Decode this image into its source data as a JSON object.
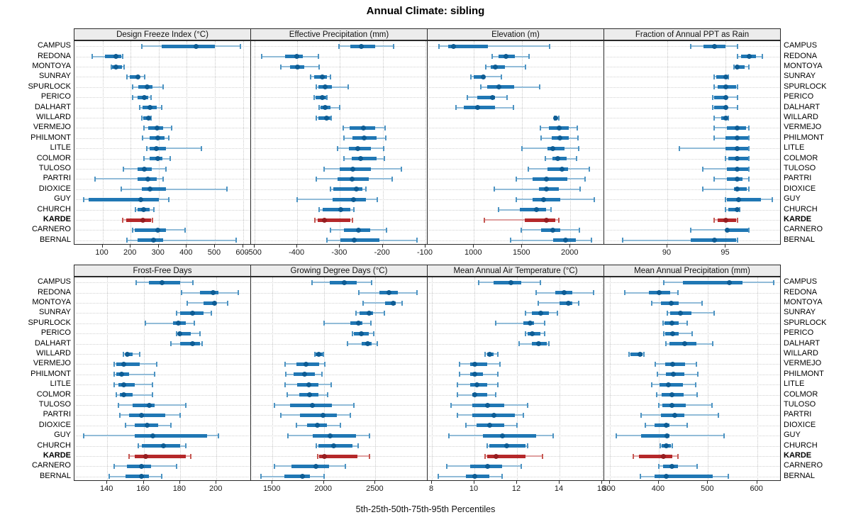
{
  "title": "Annual Climate: sibling",
  "caption": "5th-25th-50th-75th-95th Percentiles",
  "highlight_location": "KARDE",
  "locations": [
    "CAMPUS",
    "REDONA",
    "MONTOYA",
    "SUNRAY",
    "SPURLOCK",
    "PERICO",
    "DALHART",
    "WILLARD",
    "VERMEJO",
    "PHILMONT",
    "LITLE",
    "COLMOR",
    "TULOSO",
    "PARTRI",
    "DIOXICE",
    "GUY",
    "CHURCH",
    "KARDE",
    "CARNERO",
    "BERNAL"
  ],
  "colors": {
    "blue_whisker": "#92bcd8",
    "blue_cap": "#4d94c3",
    "blue_box": "#2077b4",
    "blue_dot": "#0d5c94",
    "red_whisker": "#dfa0a0",
    "red_cap": "#c65853",
    "red_box": "#b5282a",
    "red_dot": "#951d20",
    "grid": "#cccccc",
    "strip_bg": "#ececec",
    "border": "#2a2a2a"
  },
  "chart_data": [
    {
      "type": "dotplot-percentiles",
      "title": "Design Freeze Index (°C)",
      "percentile_labels": [
        "5th",
        "25th",
        "50th",
        "75th",
        "95th"
      ],
      "xlim": [
        0,
        629
      ],
      "ticks": [
        100,
        200,
        300,
        400,
        500,
        600
      ],
      "values": [
        [
          240,
          310,
          433,
          500,
          590
        ],
        [
          62,
          108,
          148,
          166,
          172
        ],
        [
          132,
          135,
          148,
          169,
          176
        ],
        [
          187,
          197,
          225,
          231,
          249
        ],
        [
          207,
          227,
          259,
          277,
          317
        ],
        [
          207,
          225,
          250,
          262,
          274
        ],
        [
          233,
          242,
          270,
          292,
          310
        ],
        [
          240,
          246,
          264,
          271,
          274
        ],
        [
          248,
          263,
          294,
          315,
          346
        ],
        [
          242,
          269,
          298,
          320,
          337
        ],
        [
          258,
          269,
          291,
          325,
          453
        ],
        [
          247,
          269,
          298,
          312,
          342
        ],
        [
          174,
          225,
          250,
          275,
          327
        ],
        [
          74,
          226,
          262,
          294,
          317
        ],
        [
          167,
          239,
          270,
          327,
          544
        ],
        [
          33,
          50,
          237,
          300,
          337
        ],
        [
          216,
          225,
          247,
          267,
          284
        ],
        [
          172,
          185,
          243,
          272,
          279
        ],
        [
          206,
          214,
          298,
          327,
          393
        ],
        [
          187,
          225,
          281,
          315,
          576
        ]
      ]
    },
    {
      "type": "dotplot-percentiles",
      "title": "Effective Precipitation (mm)",
      "percentile_labels": [
        "5th",
        "25th",
        "50th",
        "75th",
        "95th"
      ],
      "xlim": [
        -508,
        -95
      ],
      "ticks": [
        -500,
        -400,
        -300,
        -200,
        -100
      ],
      "values": [
        [
          -303,
          -276,
          -250,
          -218,
          -174
        ],
        [
          -483,
          -428,
          -401,
          -387,
          -350
        ],
        [
          -439,
          -417,
          -399,
          -383,
          -349
        ],
        [
          -369,
          -361,
          -342,
          -331,
          -323
        ],
        [
          -355,
          -350,
          -334,
          -319,
          -281
        ],
        [
          -361,
          -357,
          -341,
          -332,
          -330
        ],
        [
          -349,
          -346,
          -334,
          -323,
          -301
        ],
        [
          -355,
          -350,
          -331,
          -323,
          -320
        ],
        [
          -292,
          -278,
          -245,
          -218,
          -195
        ],
        [
          -290,
          -270,
          -243,
          -215,
          -193
        ],
        [
          -305,
          -279,
          -258,
          -227,
          -198
        ],
        [
          -290,
          -272,
          -252,
          -215,
          -196
        ],
        [
          -337,
          -301,
          -270,
          -227,
          -157
        ],
        [
          -356,
          -305,
          -272,
          -232,
          -178
        ],
        [
          -323,
          -316,
          -261,
          -247,
          -240
        ],
        [
          -401,
          -317,
          -268,
          -240,
          -212
        ],
        [
          -349,
          -340,
          -299,
          -275,
          -268
        ],
        [
          -358,
          -352,
          -336,
          -275,
          -270
        ],
        [
          -322,
          -290,
          -257,
          -229,
          -191
        ],
        [
          -331,
          -299,
          -267,
          -208,
          -120
        ]
      ]
    },
    {
      "type": "dotplot-percentiles",
      "title": "Elevation (m)",
      "percentile_labels": [
        "5th",
        "25th",
        "50th",
        "75th",
        "95th"
      ],
      "xlim": [
        520,
        2351
      ],
      "ticks": [
        1000,
        1500,
        2000
      ],
      "values": [
        [
          640,
          730,
          790,
          1145,
          1785
        ],
        [
          1190,
          1256,
          1335,
          1422,
          1570
        ],
        [
          1122,
          1176,
          1220,
          1325,
          1537
        ],
        [
          970,
          1000,
          1100,
          1115,
          1285
        ],
        [
          1073,
          1139,
          1256,
          1415,
          1679
        ],
        [
          930,
          1035,
          1195,
          1220,
          1340
        ],
        [
          817,
          897,
          1037,
          1215,
          1408
        ],
        [
          1837,
          1843,
          1849,
          1866,
          1878
        ],
        [
          1688,
          1781,
          1886,
          1984,
          2074
        ],
        [
          1700,
          1805,
          1891,
          1984,
          2079
        ],
        [
          1496,
          1760,
          1815,
          1942,
          2084
        ],
        [
          1737,
          1817,
          1871,
          1959,
          2061
        ],
        [
          1566,
          1761,
          1911,
          1976,
          2200
        ],
        [
          1439,
          1610,
          1750,
          1969,
          2152
        ],
        [
          1208,
          1671,
          1752,
          1878,
          2103
        ],
        [
          1439,
          1610,
          1725,
          1896,
          2249
        ],
        [
          1256,
          1476,
          1647,
          1745,
          1798
        ],
        [
          1110,
          1530,
          1752,
          1847,
          1878
        ],
        [
          1488,
          1695,
          1817,
          1896,
          2091
        ],
        [
          1384,
          1825,
          1952,
          2057,
          2220
        ]
      ]
    },
    {
      "type": "dotplot-percentiles",
      "title": "Fraction of Annual PPT as Rain",
      "percentile_labels": [
        "5th",
        "25th",
        "50th",
        "75th",
        "95th"
      ],
      "xlim": [
        84.6,
        99.7
      ],
      "ticks": [
        90,
        95
      ],
      "values": [
        [
          92.0,
          93.1,
          94.0,
          95.0,
          96.0
        ],
        [
          96.0,
          96.3,
          97.0,
          97.6,
          98.1
        ],
        [
          95.7,
          95.8,
          96.0,
          96.6,
          97.0
        ],
        [
          94.0,
          94.2,
          95.0,
          95.1,
          95.2
        ],
        [
          94.0,
          94.3,
          95.0,
          95.9,
          96.0
        ],
        [
          93.9,
          94.0,
          95.0,
          95.1,
          96.0
        ],
        [
          93.9,
          94.0,
          95.0,
          95.1,
          96.0
        ],
        [
          94.0,
          94.6,
          95.0,
          95.1,
          95.2
        ],
        [
          94.0,
          95.1,
          96.0,
          96.7,
          97.0
        ],
        [
          94.0,
          95.0,
          96.0,
          96.9,
          97.0
        ],
        [
          91.0,
          95.0,
          96.0,
          96.9,
          97.0
        ],
        [
          95.0,
          95.2,
          96.0,
          96.9,
          97.0
        ],
        [
          93.0,
          95.1,
          96.0,
          96.9,
          97.0
        ],
        [
          94.0,
          95.1,
          96.0,
          96.4,
          97.0
        ],
        [
          93.0,
          95.7,
          96.0,
          96.8,
          97.0
        ],
        [
          95.0,
          95.1,
          96.1,
          98.0,
          99.0
        ],
        [
          95.0,
          95.2,
          96.0,
          96.1,
          96.2
        ],
        [
          94.0,
          94.3,
          95.0,
          95.9,
          96.0
        ],
        [
          92.0,
          95.0,
          95.1,
          96.9,
          97.0
        ],
        [
          86.2,
          92.0,
          94.0,
          95.9,
          96.0
        ]
      ]
    },
    {
      "type": "dotplot-percentiles",
      "title": "Frost-Free Days",
      "percentile_labels": [
        "5th",
        "25th",
        "50th",
        "75th",
        "95th"
      ],
      "xlim": [
        122,
        219
      ],
      "ticks": [
        140,
        160,
        180,
        200
      ],
      "values": [
        [
          156,
          163,
          170,
          180,
          187
        ],
        [
          181,
          191,
          198,
          201,
          212
        ],
        [
          184,
          193,
          199,
          200,
          206
        ],
        [
          178,
          180,
          187,
          193,
          197
        ],
        [
          161,
          176,
          179,
          183,
          188
        ],
        [
          178,
          179,
          180,
          186,
          191
        ],
        [
          175,
          180,
          187,
          191,
          192
        ],
        [
          149,
          150,
          151,
          154,
          158
        ],
        [
          144,
          145,
          149,
          158,
          167
        ],
        [
          144,
          145,
          148,
          152,
          166
        ],
        [
          144,
          146,
          149,
          155,
          165
        ],
        [
          145,
          147,
          149,
          154,
          165
        ],
        [
          146,
          154,
          163,
          166,
          183
        ],
        [
          147,
          152,
          159,
          172,
          180
        ],
        [
          150,
          155,
          162,
          168,
          175
        ],
        [
          127,
          155,
          165,
          195,
          201
        ],
        [
          157,
          159,
          171,
          180,
          183
        ],
        [
          152,
          155,
          161,
          183,
          186
        ],
        [
          144,
          151,
          159,
          164,
          178
        ],
        [
          141,
          150,
          159,
          163,
          170
        ]
      ]
    },
    {
      "type": "dotplot-percentiles",
      "title": "Growing Degree Days (°C)",
      "percentile_labels": [
        "5th",
        "25th",
        "50th",
        "75th",
        "95th"
      ],
      "xlim": [
        1292,
        3007
      ],
      "ticks": [
        1500,
        2000,
        2500
      ],
      "values": [
        [
          1885,
          2055,
          2195,
          2315,
          2465
        ],
        [
          2337,
          2539,
          2631,
          2716,
          2906
        ],
        [
          2380,
          2594,
          2670,
          2700,
          2757
        ],
        [
          2310,
          2349,
          2436,
          2475,
          2585
        ],
        [
          2000,
          2257,
          2337,
          2372,
          2459
        ],
        [
          2276,
          2291,
          2360,
          2436,
          2482
        ],
        [
          2230,
          2367,
          2425,
          2463,
          2520
        ],
        [
          1909,
          1921,
          1952,
          1986,
          1993
        ],
        [
          1622,
          1730,
          1828,
          1950,
          2009
        ],
        [
          1631,
          1706,
          1814,
          1909,
          1982
        ],
        [
          1620,
          1741,
          1851,
          1947,
          2069
        ],
        [
          1642,
          1758,
          1863,
          1947,
          2039
        ],
        [
          1518,
          1673,
          1886,
          2074,
          2288
        ],
        [
          1580,
          1765,
          1993,
          2128,
          2259
        ],
        [
          1730,
          1833,
          1936,
          2027,
          2162
        ],
        [
          1649,
          1890,
          2062,
          2312,
          2440
        ],
        [
          1924,
          1947,
          2096,
          2278,
          2335
        ],
        [
          1936,
          1954,
          2004,
          2323,
          2440
        ],
        [
          1520,
          1685,
          1925,
          2050,
          2210
        ],
        [
          1386,
          1614,
          1794,
          1867,
          2000
        ]
      ]
    },
    {
      "type": "dotplot-percentiles",
      "title": "Mean Annual Air Temperature (°C)",
      "percentile_labels": [
        "5th",
        "25th",
        "50th",
        "75th",
        "95th"
      ],
      "xlim": [
        7.8,
        16.1
      ],
      "ticks": [
        8,
        10,
        12,
        14,
        16
      ],
      "values": [
        [
          10.2,
          10.9,
          11.7,
          12.2,
          13.1
        ],
        [
          12.9,
          13.8,
          14.2,
          14.6,
          15.6
        ],
        [
          13.0,
          14.0,
          14.4,
          14.6,
          14.9
        ],
        [
          12.4,
          12.7,
          13.1,
          13.5,
          13.9
        ],
        [
          11.0,
          12.3,
          12.6,
          12.8,
          13.3
        ],
        [
          12.4,
          12.5,
          12.7,
          13.1,
          13.3
        ],
        [
          12.1,
          12.7,
          13.0,
          13.4,
          13.5
        ],
        [
          10.5,
          10.6,
          10.7,
          10.9,
          11.1
        ],
        [
          9.3,
          9.8,
          10.0,
          10.6,
          11.2
        ],
        [
          9.3,
          9.8,
          10.0,
          10.4,
          11.1
        ],
        [
          9.2,
          9.8,
          10.1,
          10.6,
          11.1
        ],
        [
          9.2,
          9.9,
          10.0,
          10.6,
          11.0
        ],
        [
          8.9,
          9.9,
          10.6,
          11.4,
          12.5
        ],
        [
          9.2,
          9.9,
          10.9,
          11.9,
          12.3
        ],
        [
          9.6,
          10.1,
          10.7,
          11.4,
          12.0
        ],
        [
          8.8,
          10.4,
          11.3,
          12.9,
          13.7
        ],
        [
          10.6,
          10.7,
          11.5,
          12.4,
          12.5
        ],
        [
          10.5,
          10.6,
          11.0,
          12.4,
          13.2
        ],
        [
          8.7,
          9.8,
          10.6,
          11.3,
          12.2
        ],
        [
          8.3,
          9.6,
          10.0,
          10.7,
          11.3
        ]
      ]
    },
    {
      "type": "dotplot-percentiles",
      "title": "Mean Annual Precipitation (mm)",
      "percentile_labels": [
        "5th",
        "25th",
        "50th",
        "75th",
        "95th"
      ],
      "xlim": [
        289,
        648
      ],
      "ticks": [
        300,
        400,
        500,
        600
      ],
      "values": [
        [
          410,
          449,
          543,
          570,
          633
        ],
        [
          331,
          380,
          401,
          423,
          439
        ],
        [
          385,
          405,
          425,
          440,
          488
        ],
        [
          417,
          423,
          444,
          466,
          513
        ],
        [
          409,
          412,
          427,
          440,
          458
        ],
        [
          410,
          413,
          428,
          440,
          468
        ],
        [
          415,
          421,
          452,
          477,
          510
        ],
        [
          340,
          343,
          362,
          367,
          370
        ],
        [
          393,
          413,
          428,
          453,
          477
        ],
        [
          397,
          415,
          430,
          452,
          479
        ],
        [
          385,
          401,
          420,
          449,
          475
        ],
        [
          396,
          406,
          427,
          450,
          478
        ],
        [
          400,
          407,
          426,
          455,
          508
        ],
        [
          364,
          404,
          432,
          452,
          521
        ],
        [
          372,
          391,
          415,
          422,
          458
        ],
        [
          314,
          364,
          416,
          422,
          533
        ],
        [
          403,
          406,
          415,
          425,
          428
        ],
        [
          348,
          360,
          410,
          428,
          439
        ],
        [
          400,
          409,
          426,
          439,
          478
        ],
        [
          363,
          391,
          415,
          509,
          541
        ]
      ]
    }
  ]
}
